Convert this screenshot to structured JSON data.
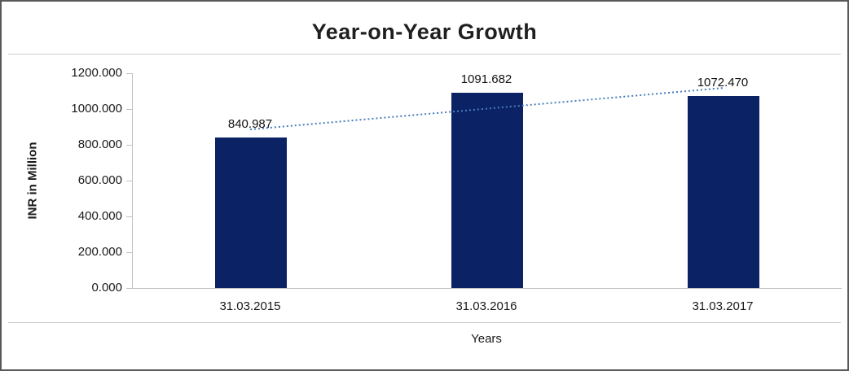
{
  "chart_data": {
    "type": "bar",
    "title": "Year-on-Year Growth",
    "xlabel": "Years",
    "ylabel": "INR in Million",
    "categories": [
      "31.03.2015",
      "31.03.2016",
      "31.03.2017"
    ],
    "values": [
      840.987,
      1091.682,
      1072.47
    ],
    "labels": [
      "840.987",
      "1091.682",
      "1072.470"
    ],
    "ylim": [
      0,
      1200
    ],
    "ytick_step": 200,
    "ytick_labels": [
      "0.000",
      "200.000",
      "400.000",
      "600.000",
      "800.000",
      "1000.000",
      "1200.000"
    ],
    "grid": false,
    "legend": "none",
    "bar_color": "#0b2265",
    "axis_color": "#c0c0c0",
    "trendline": {
      "type": "linear",
      "style": "dotted",
      "color": "#4a7ebb"
    }
  }
}
